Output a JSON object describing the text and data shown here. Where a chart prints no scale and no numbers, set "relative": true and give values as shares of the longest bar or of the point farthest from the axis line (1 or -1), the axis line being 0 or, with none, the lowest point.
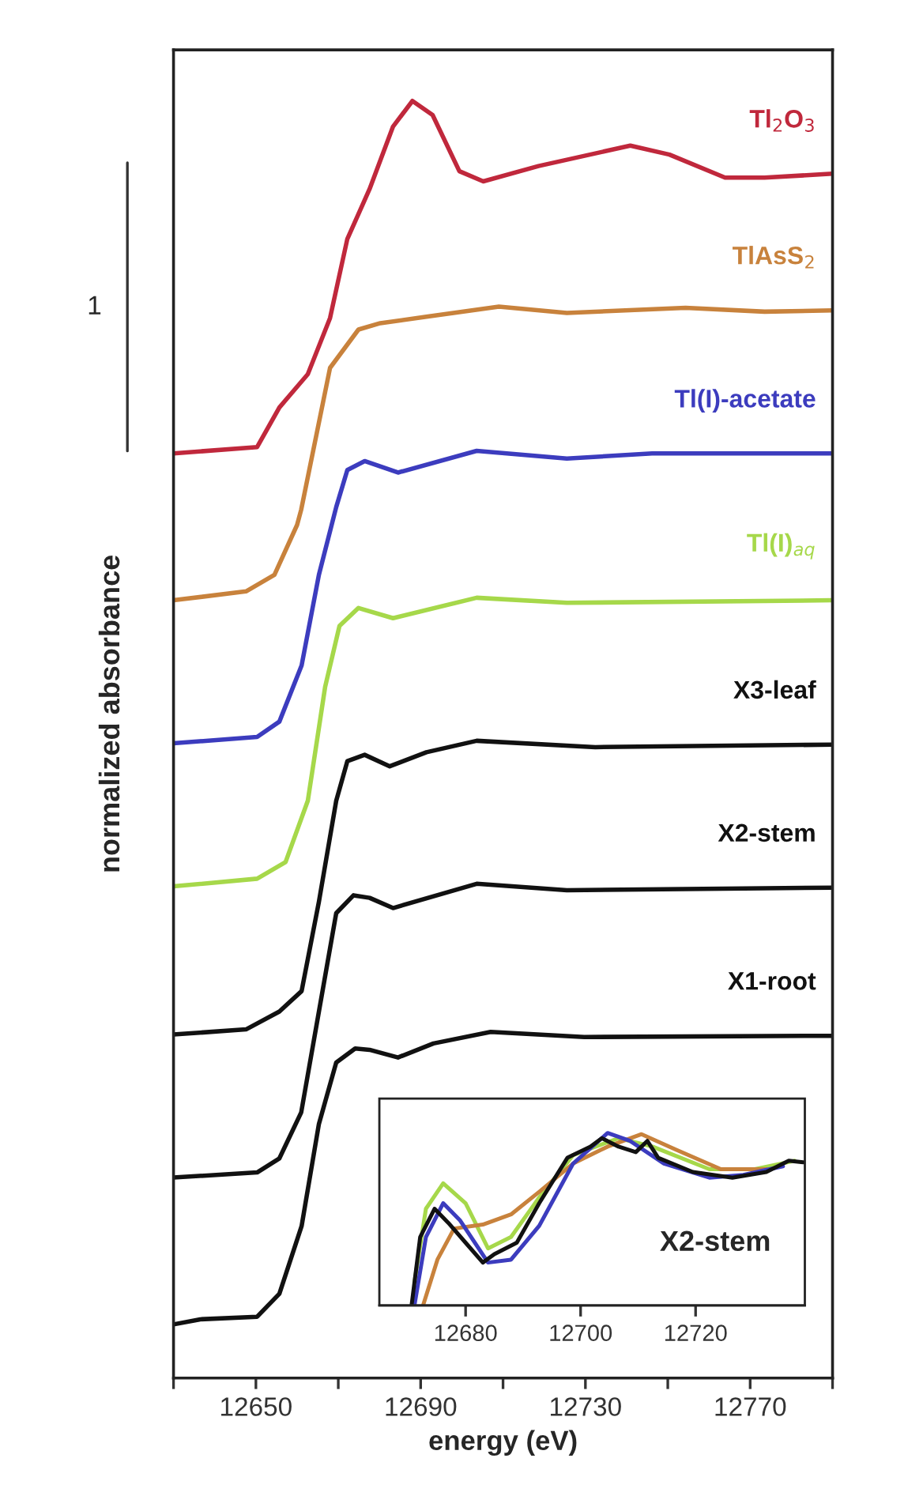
{
  "chart_data": [
    {
      "type": "line",
      "relative": true,
      "xlabel": "energy (eV)",
      "ylabel": "normalized absorbance",
      "xlim": [
        12630,
        12790
      ],
      "xticks": [
        {
          "value": 12630,
          "label": null
        },
        12650,
        {
          "value": 12670,
          "label": null
        },
        12690,
        {
          "value": 12710,
          "label": null
        },
        12730,
        {
          "value": 12750,
          "label": null
        },
        12770,
        {
          "value": 12790,
          "label": null
        }
      ],
      "tick_labels": "x",
      "annotations": [
        "1"
      ],
      "series": [
        {
          "name": "Tl$_{2}$O$_{3}$",
          "color": "#c0283c",
          "x": [
            12630,
            12650.3,
            12655.7,
            12662.6,
            12668,
            12672.2,
            12677.6,
            12683.3,
            12688,
            12692.9,
            12699.4,
            12705.2,
            12718.6,
            12740.9,
            12750.4,
            12763.9,
            12773.5,
            12790
          ],
          "values": [
            0.724,
            0.729,
            0.76,
            0.786,
            0.83,
            0.892,
            0.931,
            0.98,
            1.0,
            0.989,
            0.945,
            0.937,
            0.949,
            0.965,
            0.958,
            0.94,
            0.94,
            0.943
          ]
        },
        {
          "name": "TlAsS$_{2}$",
          "color": "#c8823c",
          "x": [
            12630,
            12647.6,
            12654.5,
            12660,
            12661,
            12668,
            12674.9,
            12680.2,
            12691.4,
            12709,
            12725.5,
            12754.3,
            12773.5,
            12790
          ],
          "values": [
            0.609,
            0.616,
            0.629,
            0.668,
            0.68,
            0.791,
            0.821,
            0.826,
            0.831,
            0.839,
            0.834,
            0.838,
            0.835,
            0.836
          ]
        },
        {
          "name": "Tl(I)-acetate",
          "color": "#3c3cbe",
          "x": [
            12630,
            12650.3,
            12655.7,
            12661.1,
            12665.3,
            12669.5,
            12672.2,
            12676.4,
            12684.5,
            12703.6,
            12725.5,
            12746.2,
            12790
          ],
          "values": [
            0.497,
            0.502,
            0.514,
            0.558,
            0.629,
            0.682,
            0.711,
            0.718,
            0.709,
            0.726,
            0.72,
            0.724,
            0.724
          ]
        },
        {
          "name": "Tl(I)$_{aq}$",
          "color": "#a6d84a",
          "x": [
            12630,
            12650.3,
            12657.2,
            12662.6,
            12666.8,
            12670.3,
            12674.9,
            12683.3,
            12703.6,
            12725.5,
            12790
          ],
          "values": [
            0.385,
            0.391,
            0.404,
            0.452,
            0.541,
            0.589,
            0.603,
            0.595,
            0.611,
            0.607,
            0.609
          ]
        },
        {
          "name": "X3-leaf",
          "color": "#111111",
          "x": [
            12630,
            12647.6,
            12655.7,
            12661.1,
            12665.3,
            12669.5,
            12672.2,
            12676.4,
            12682.5,
            12691.4,
            12703.6,
            12732.4,
            12790
          ],
          "values": [
            0.269,
            0.273,
            0.287,
            0.303,
            0.373,
            0.452,
            0.483,
            0.488,
            0.479,
            0.49,
            0.499,
            0.494,
            0.496
          ]
        },
        {
          "name": "X2-stem",
          "color": "#111111",
          "x": [
            12630,
            12650.3,
            12655.7,
            12661,
            12665.3,
            12669.5,
            12673.7,
            12677.6,
            12683.3,
            12703.6,
            12725.5,
            12790
          ],
          "values": [
            0.157,
            0.161,
            0.172,
            0.208,
            0.287,
            0.364,
            0.378,
            0.376,
            0.368,
            0.387,
            0.382,
            0.384
          ]
        },
        {
          "name": "X1-root",
          "color": "#111111",
          "x": [
            12630,
            12636.5,
            12650.3,
            12655.7,
            12661.1,
            12665.3,
            12669.5,
            12674.1,
            12677.6,
            12684.5,
            12693.1,
            12707,
            12729.7,
            12790
          ],
          "values": [
            0.042,
            0.046,
            0.048,
            0.066,
            0.119,
            0.199,
            0.247,
            0.258,
            0.257,
            0.251,
            0.262,
            0.271,
            0.267,
            0.268
          ]
        }
      ]
    },
    {
      "type": "line",
      "relative": true,
      "xlim": [
        12665,
        12739
      ],
      "xticks": [
        12680,
        12700,
        12720
      ],
      "tick_labels": "x",
      "annotations": [
        "X2-stem"
      ],
      "series": [
        {
          "color": "#a6d84a",
          "x": [
            12671.1,
            12673.1,
            12676.1,
            12680,
            12683.9,
            12687.9,
            12692.8,
            12698.7,
            12706.6,
            12712.5,
            12722.4,
            12730.3,
            12737.2
          ],
          "values": [
            0.134,
            0.561,
            0.708,
            0.593,
            0.331,
            0.397,
            0.626,
            0.872,
            0.97,
            0.921,
            0.79,
            0.79,
            0.839
          ]
        },
        {
          "color": "#c8823c",
          "x": [
            12672.6,
            12675.1,
            12678,
            12683,
            12687.9,
            12692.8,
            12698.7,
            12704.7,
            12710.6,
            12716.5,
            12724.4,
            12732.3
          ],
          "values": [
            0,
            0.266,
            0.446,
            0.469,
            0.528,
            0.659,
            0.823,
            0.921,
            0.993,
            0.905,
            0.79,
            0.79
          ]
        },
        {
          "color": "#3c3cbe",
          "x": [
            12671.1,
            12673.1,
            12676.1,
            12679,
            12683.9,
            12687.9,
            12692.8,
            12698.7,
            12704.7,
            12708.6,
            12714.5,
            12722.4,
            12728.3,
            12735.2
          ],
          "values": [
            0,
            0.397,
            0.593,
            0.495,
            0.249,
            0.266,
            0.462,
            0.823,
            1.0,
            0.954,
            0.823,
            0.741,
            0.757,
            0.807
          ]
        },
        {
          "color": "#111111",
          "x": [
            12670.6,
            12672.1,
            12674.6,
            12677,
            12680,
            12683,
            12685,
            12688.9,
            12692.8,
            12697.7,
            12701.7,
            12703.7,
            12706.6,
            12709.6,
            12711.6,
            12713.5,
            12719.5,
            12726.4,
            12732.3,
            12736.2,
            12738.7
          ],
          "values": [
            0,
            0.397,
            0.561,
            0.479,
            0.364,
            0.249,
            0.298,
            0.364,
            0.593,
            0.856,
            0.921,
            0.97,
            0.921,
            0.889,
            0.954,
            0.856,
            0.774,
            0.741,
            0.774,
            0.839,
            0.83
          ]
        }
      ]
    }
  ]
}
